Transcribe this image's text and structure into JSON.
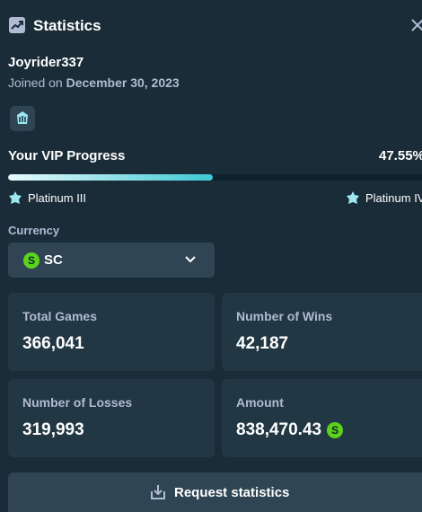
{
  "header": {
    "title": "Statistics"
  },
  "user": {
    "name": "Joyrider337",
    "joined_prefix": "Joined on",
    "joined_date": "December 30, 2023"
  },
  "vip": {
    "title": "Your VIP Progress",
    "progress": {
      "value": 47.55,
      "label": "47.55%"
    },
    "current_level": "Platinum III",
    "next_level": "Platinum IV"
  },
  "currency": {
    "label": "Currency",
    "icon": "S",
    "selected": "SC"
  },
  "stats": [
    {
      "label": "Total Games",
      "value": "366,041"
    },
    {
      "label": "Number of Wins",
      "value": "42,187"
    },
    {
      "label": "Number of Losses",
      "value": "319,993"
    },
    {
      "label": "Amount",
      "value": "838,470.43",
      "icon": "S"
    }
  ],
  "button": {
    "label": "Request statistics"
  }
}
